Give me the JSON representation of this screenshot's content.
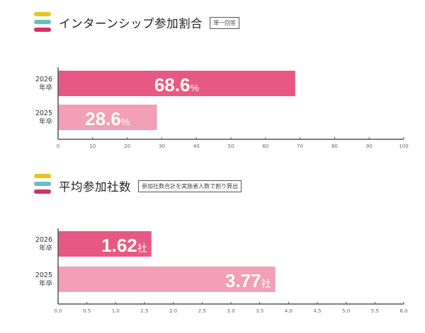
{
  "colors": {
    "yellow": "#e8c51c",
    "teal": "#6cbcbd",
    "crimson": "#d4316a",
    "bar_2026": "#e85884",
    "bar_2025": "#f29fb7",
    "axis": "#555555"
  },
  "chart_data": [
    {
      "type": "bar",
      "orientation": "horizontal",
      "title": "インターンシップ参加割合",
      "note": "単一回答",
      "categories": [
        [
          "2026",
          "年卒"
        ],
        [
          "2025",
          "年卒"
        ]
      ],
      "values": [
        68.6,
        28.6
      ],
      "unit": "%",
      "labels": [
        "68.6",
        "28.6"
      ],
      "xlim": [
        0,
        100
      ],
      "ticks": [
        "0",
        "10",
        "20",
        "30",
        "40",
        "50",
        "60",
        "70",
        "80",
        "90",
        "100"
      ],
      "tick_values": [
        0,
        10,
        20,
        30,
        40,
        50,
        60,
        70,
        80,
        90,
        100
      ],
      "label_align": "center"
    },
    {
      "type": "bar",
      "orientation": "horizontal",
      "title": "平均参加社数",
      "note": "参加社数合計を実施者人数で割り算出",
      "categories": [
        [
          "2026",
          "年卒"
        ],
        [
          "2025",
          "年卒"
        ]
      ],
      "values": [
        1.62,
        3.77
      ],
      "unit": "社",
      "labels": [
        "1.62",
        "3.77"
      ],
      "xlim": [
        0,
        6
      ],
      "ticks": [
        "0.0",
        "0.5",
        "1.0",
        "1.5",
        "2.0",
        "2.5",
        "3.0",
        "3.5",
        "4.0",
        "4.5",
        "5.0",
        "5.5",
        "6.0"
      ],
      "tick_values": [
        0,
        0.5,
        1,
        1.5,
        2,
        2.5,
        3,
        3.5,
        4,
        4.5,
        5,
        5.5,
        6
      ],
      "label_align": "right"
    }
  ]
}
